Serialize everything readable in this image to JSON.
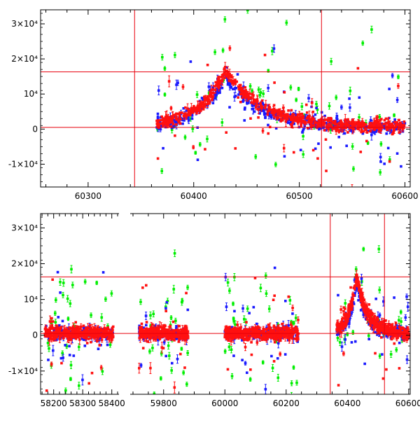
{
  "chart_data": [
    {
      "type": "scatter",
      "title": "",
      "xlabel": "",
      "ylabel": "",
      "xlim": [
        60255,
        60605
      ],
      "ylim": [
        -16500,
        34000
      ],
      "x_ticks": [
        60300,
        60400,
        60500,
        60600
      ],
      "y_ticks": [
        -10000,
        0,
        10000,
        20000,
        30000
      ],
      "y_tick_labels": [
        "-1×10⁴",
        "0",
        "10⁴",
        "2×10⁴",
        "3×10⁴"
      ],
      "grid": false,
      "legend": "none",
      "reference_lines": {
        "vertical_x": [
          60344,
          60521
        ],
        "horizontal_y": [
          500,
          16300
        ]
      },
      "colors": {
        "green": "#00ee00",
        "blue": "#1a1aff",
        "red": "#ff1010",
        "refline": "#e8000b"
      },
      "series": [
        {
          "color": "green",
          "values_summary": "sparse scatter, mostly 60365-60600, y from -15000 to 33000"
        },
        {
          "color": "blue",
          "values_summary": "dense scatter, light curve peaking ~13000 near 60430"
        },
        {
          "color": "red",
          "values_summary": "dense scatter, light curve peaking ~17000 near 60430"
        }
      ],
      "curve_model": {
        "peak_x": 60430,
        "peak_y": 16500,
        "baseline_y": 500,
        "rise_width": 25,
        "decay_width": 35
      }
    },
    {
      "type": "scatter",
      "title": "",
      "xlabel": "",
      "ylabel": "",
      "broken_axis": true,
      "segments": [
        {
          "xlim": [
            58155,
            58420
          ],
          "x_ticks": [
            58200,
            58300,
            58400
          ],
          "tick_labels_shown": [
            "58200",
            "58300",
            "58400"
          ]
        },
        {
          "xlim": [
            59700,
            60605
          ],
          "x_ticks": [
            59800,
            60000,
            60200,
            60400,
            60600
          ],
          "tick_labels_shown": [
            "59800",
            "60000",
            "60200",
            "60400",
            "60600"
          ]
        }
      ],
      "ylim": [
        -16500,
        34000
      ],
      "y_ticks": [
        -10000,
        0,
        10000,
        20000,
        30000
      ],
      "y_tick_labels": [
        "-1×10⁴",
        "0",
        "10⁴",
        "2×10⁴",
        "3×10⁴"
      ],
      "grid": false,
      "legend": "none",
      "reference_lines": {
        "vertical_x": [
          60344,
          60521
        ],
        "horizontal_y": [
          500,
          16300
        ]
      },
      "season_ranges": [
        [
          58170,
          58405
        ],
        [
          59720,
          59880
        ],
        [
          60000,
          60240
        ],
        [
          60365,
          60600
        ]
      ],
      "series": [
        {
          "color": "green"
        },
        {
          "color": "blue"
        },
        {
          "color": "red"
        }
      ]
    }
  ]
}
